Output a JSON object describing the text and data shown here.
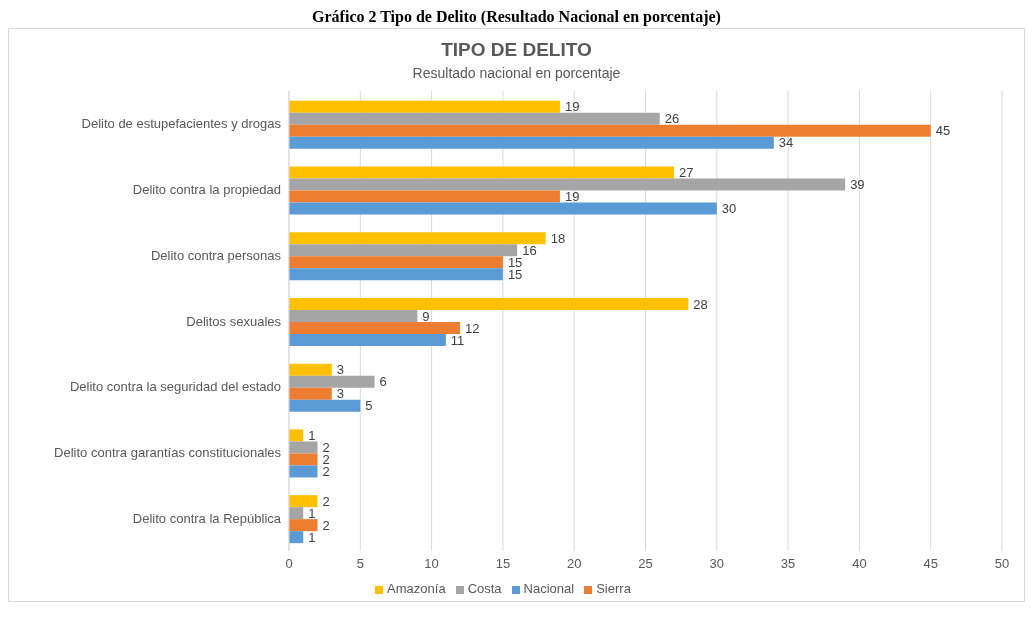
{
  "chart_data": {
    "type": "bar",
    "orientation": "horizontal",
    "title": "TIPO DE DELITO",
    "subtitle": "Resultado nacional en porcentaje",
    "annotations": [
      "Gráfico 2 Tipo de Delito (Resultado Nacional en porcentaje)"
    ],
    "categories": [
      "Delito de estupefacientes y drogas",
      "Delito contra la propiedad",
      "Delito contra personas",
      "Delitos sexuales",
      "Delito contra la seguridad del estado",
      "Delito contra garantías constitucionales",
      "Delito contra la República"
    ],
    "series": [
      {
        "name": "Amazonía",
        "color": "#ffc000",
        "values": [
          19,
          27,
          18,
          28,
          3,
          1,
          2
        ]
      },
      {
        "name": "Costa",
        "color": "#a5a5a5",
        "values": [
          26,
          39,
          16,
          9,
          6,
          2,
          1
        ]
      },
      {
        "name": "Sierra",
        "color": "#ed7d31",
        "values": [
          45,
          19,
          15,
          12,
          3,
          2,
          2
        ]
      },
      {
        "name": "Nacional",
        "color": "#5b9bd5",
        "values": [
          34,
          30,
          15,
          11,
          5,
          2,
          1
        ]
      }
    ],
    "xlim": [
      0,
      50
    ],
    "xticks": [
      0,
      5,
      10,
      15,
      20,
      25,
      30,
      35,
      40,
      45,
      50
    ],
    "grid": "x",
    "legend": "bottom",
    "data_labels": true
  }
}
